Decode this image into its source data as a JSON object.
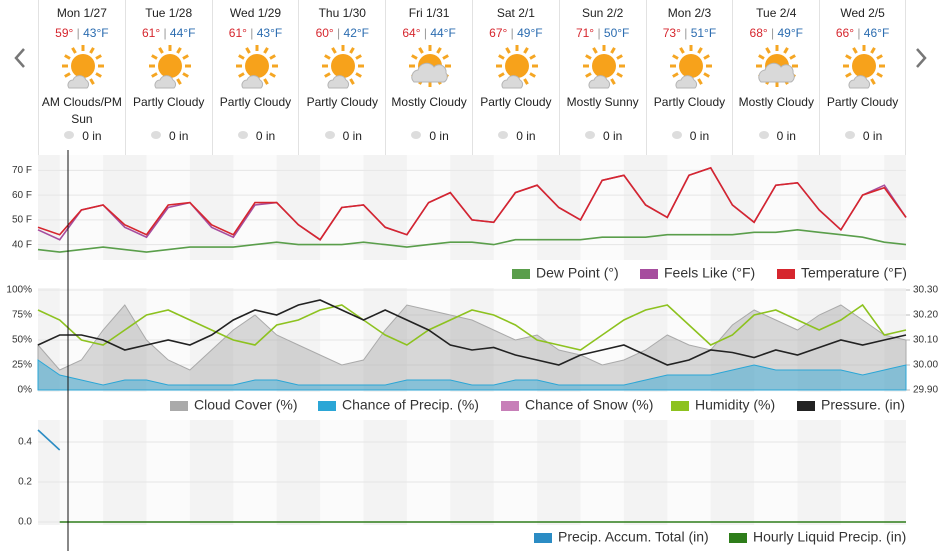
{
  "forecast": [
    {
      "day": "Mon 1/27",
      "high": "59°",
      "low": "43°F",
      "condition": "AM Clouds/PM Sun",
      "precip": "0 in"
    },
    {
      "day": "Tue 1/28",
      "high": "61°",
      "low": "44°F",
      "condition": "Partly Cloudy",
      "precip": "0 in"
    },
    {
      "day": "Wed 1/29",
      "high": "61°",
      "low": "43°F",
      "condition": "Partly Cloudy",
      "precip": "0 in"
    },
    {
      "day": "Thu 1/30",
      "high": "60°",
      "low": "42°F",
      "condition": "Partly Cloudy",
      "precip": "0 in"
    },
    {
      "day": "Fri 1/31",
      "high": "64°",
      "low": "44°F",
      "condition": "Mostly Cloudy",
      "precip": "0 in"
    },
    {
      "day": "Sat 2/1",
      "high": "67°",
      "low": "49°F",
      "condition": "Partly Cloudy",
      "precip": "0 in"
    },
    {
      "day": "Sun 2/2",
      "high": "71°",
      "low": "50°F",
      "condition": "Mostly Sunny",
      "precip": "0 in"
    },
    {
      "day": "Mon 2/3",
      "high": "73°",
      "low": "51°F",
      "condition": "Partly Cloudy",
      "precip": "0 in"
    },
    {
      "day": "Tue 2/4",
      "high": "68°",
      "low": "49°F",
      "condition": "Mostly Cloudy",
      "precip": "0 in"
    },
    {
      "day": "Wed 2/5",
      "high": "66°",
      "low": "46°F",
      "condition": "Partly Cloudy",
      "precip": "0 in"
    }
  ],
  "chart_data": [
    {
      "type": "line",
      "ylim": [
        35,
        75
      ],
      "yticks": [
        {
          "value": 70,
          "label": "70 F"
        },
        {
          "value": 60,
          "label": "60 F"
        },
        {
          "value": 50,
          "label": "50 F"
        },
        {
          "value": 40,
          "label": "40 F"
        }
      ],
      "series": [
        {
          "name": "Dew Point (°)",
          "color": "#5a9e4b",
          "values": [
            38,
            37,
            38,
            39,
            38,
            37,
            38,
            39,
            39,
            39,
            40,
            41,
            40,
            40,
            40,
            41,
            40,
            39,
            40,
            41,
            41,
            40,
            42,
            42,
            42,
            42,
            43,
            43,
            43,
            44,
            44,
            44,
            44,
            45,
            45,
            46,
            45,
            44,
            43,
            41,
            40
          ]
        },
        {
          "name": "Feels Like (°F)",
          "color": "#a64d9e",
          "values": [
            46,
            42,
            54,
            56,
            47,
            43,
            55,
            57,
            47,
            43,
            56,
            57,
            48,
            42,
            55,
            56,
            47,
            44,
            57,
            61,
            50,
            49,
            61,
            64,
            55,
            50,
            66,
            68,
            56,
            51,
            68,
            71,
            56,
            49,
            64,
            65,
            54,
            46,
            60,
            64,
            51
          ]
        },
        {
          "name": "Temperature (°F)",
          "color": "#d6262e",
          "values": [
            47,
            44,
            54,
            56,
            48,
            44,
            56,
            57,
            48,
            44,
            57,
            57,
            48,
            42,
            55,
            56,
            47,
            44,
            57,
            61,
            50,
            49,
            61,
            64,
            55,
            50,
            66,
            68,
            56,
            51,
            68,
            71,
            56,
            49,
            64,
            65,
            54,
            46,
            60,
            63,
            51
          ]
        }
      ]
    },
    {
      "type": "line",
      "ylim": [
        0,
        100
      ],
      "y2lim": [
        29.9,
        30.3
      ],
      "yticks": [
        {
          "value": 100,
          "label": "100%"
        },
        {
          "value": 75,
          "label": "75%"
        },
        {
          "value": 50,
          "label": "50%"
        },
        {
          "value": 25,
          "label": "25%"
        },
        {
          "value": 0,
          "label": "0%"
        }
      ],
      "y2ticks": [
        {
          "value": 30.3,
          "label": "30.30"
        },
        {
          "value": 30.2,
          "label": "30.20"
        },
        {
          "value": 30.1,
          "label": "30.10"
        },
        {
          "value": 30,
          "label": "30.00"
        },
        {
          "value": 29.9,
          "label": "29.90"
        }
      ],
      "series": [
        {
          "name": "Cloud Cover (%)",
          "color": "#aaaaaa",
          "kind": "area",
          "values": [
            45,
            20,
            30,
            60,
            85,
            50,
            30,
            20,
            40,
            60,
            75,
            55,
            45,
            35,
            25,
            30,
            60,
            85,
            80,
            75,
            70,
            60,
            50,
            55,
            40,
            35,
            25,
            30,
            40,
            55,
            45,
            40,
            65,
            80,
            70,
            60,
            75,
            85,
            70,
            55,
            50
          ]
        },
        {
          "name": "Chance of Precip. (%)",
          "color": "#2ba6d6",
          "kind": "area",
          "values": [
            30,
            15,
            10,
            5,
            10,
            10,
            5,
            5,
            5,
            5,
            10,
            10,
            5,
            5,
            5,
            5,
            5,
            10,
            10,
            10,
            5,
            5,
            10,
            10,
            5,
            5,
            5,
            5,
            10,
            15,
            15,
            15,
            20,
            25,
            20,
            20,
            20,
            20,
            15,
            20,
            25
          ]
        },
        {
          "name": "Chance of Snow (%)",
          "color": "#c77fb8"
        },
        {
          "name": "Humidity (%)",
          "color": "#8dc21f",
          "values": [
            80,
            70,
            50,
            45,
            60,
            75,
            80,
            70,
            60,
            50,
            45,
            65,
            70,
            80,
            85,
            70,
            55,
            45,
            60,
            70,
            80,
            75,
            65,
            50,
            45,
            40,
            55,
            70,
            80,
            85,
            65,
            45,
            55,
            75,
            80,
            70,
            60,
            70,
            85,
            55,
            60
          ]
        },
        {
          "name": "Pressure. (in)",
          "color": "#222222",
          "axis": "y2",
          "values": [
            30.08,
            30.12,
            30.12,
            30.1,
            30.06,
            30.08,
            30.1,
            30.08,
            30.12,
            30.18,
            30.22,
            30.2,
            30.24,
            30.26,
            30.22,
            30.18,
            30.22,
            30.18,
            30.14,
            30.08,
            30.06,
            30.07,
            30.04,
            30.02,
            30.0,
            30.04,
            30.06,
            30.08,
            30.04,
            30.0,
            30.02,
            30.06,
            30.05,
            30.03,
            30.06,
            30.04,
            30.07,
            30.1,
            30.08,
            30.1,
            30.12
          ]
        }
      ]
    },
    {
      "type": "line",
      "ylim": [
        0,
        0.5
      ],
      "yticks": [
        0.4,
        0.2,
        {
          "value": 0,
          "label": "0.0"
        }
      ],
      "series": [
        {
          "name": "Precip. Accum. Total (in)",
          "color": "#2b8cc4",
          "values": [
            0.46,
            0.36,
            null,
            null,
            null,
            null,
            null,
            null,
            null,
            null,
            null,
            null,
            null,
            null,
            null,
            null,
            null,
            null,
            null,
            null,
            null,
            null,
            null,
            null,
            null,
            null,
            null,
            null,
            null,
            null,
            null,
            null,
            null,
            null,
            null,
            null,
            null,
            null,
            null,
            null,
            null
          ]
        },
        {
          "name": "Hourly Liquid Precip. (in)",
          "color": "#2e7d1a",
          "values": [
            null,
            0,
            0,
            0,
            0,
            0,
            0,
            0,
            0,
            0,
            0,
            0,
            0,
            0,
            0,
            0,
            0,
            0,
            0,
            0,
            0,
            0,
            0,
            0,
            0,
            0,
            0,
            0,
            0,
            0,
            0,
            0,
            0,
            0,
            0,
            0,
            0,
            0,
            0,
            0,
            0
          ]
        }
      ]
    }
  ]
}
